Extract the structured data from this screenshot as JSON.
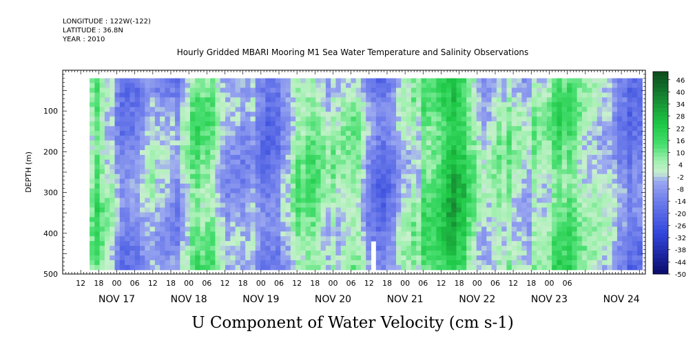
{
  "header": {
    "longitude": "LONGITUDE : 122W(-122)",
    "latitude": "LATITUDE : 36.8N",
    "year": "YEAR : 2010"
  },
  "chart_data": {
    "type": "heatmap",
    "title": "Hourly Gridded MBARI Mooring M1 Sea Water Temperature and Salinity Observations",
    "variable_title": "U Component of Water Velocity (cm s-1)",
    "ylabel": "DEPTH (m)",
    "ylim": [
      500,
      0
    ],
    "y_axis_inverted": true,
    "y_ticks": [
      100,
      200,
      300,
      400,
      500
    ],
    "x_hour_labels": [
      "12",
      "18",
      "00",
      "06",
      "12",
      "18",
      "00",
      "06",
      "12",
      "18",
      "00",
      "06",
      "12",
      "18",
      "00",
      "06",
      "12",
      "18",
      "00",
      "06",
      "12",
      "18",
      "00",
      "06",
      "12",
      "18",
      "00",
      "06"
    ],
    "x_date_labels": [
      "NOV 17",
      "NOV 18",
      "NOV 19",
      "NOV 20",
      "NOV 21",
      "NOV 22",
      "NOV 23",
      "NOV 24"
    ],
    "x_range_hours": [
      "NOV 16 06:00",
      "NOV 24 08:00"
    ],
    "data_x_range_hours": [
      "NOV 16 15:00",
      "NOV 24 07:00"
    ],
    "data_depth_range_m": [
      20,
      490
    ],
    "colorbar_levels": [
      "46",
      "40",
      "34",
      "28",
      "22",
      "16",
      "10",
      "4",
      "-2",
      "-8",
      "-14",
      "-20",
      "-26",
      "-32",
      "-38",
      "-44",
      "-50"
    ],
    "colorbar_range": [
      -50,
      50
    ],
    "colors": {
      "negative": "#7e8cf0",
      "near_zero": "#bff5c8",
      "positive": "#2ed85a",
      "strong_negative": "#0a0a6a",
      "strong_positive": "#0c4a1c"
    },
    "gap": "small white data gap near NOV 21 12:00 below ~410 m",
    "pattern": "Alternating vertical bands of positive (green) and negative (blue) U velocity; stronger positive flow NOV 21 to NOV 23 at 150-400 m"
  }
}
